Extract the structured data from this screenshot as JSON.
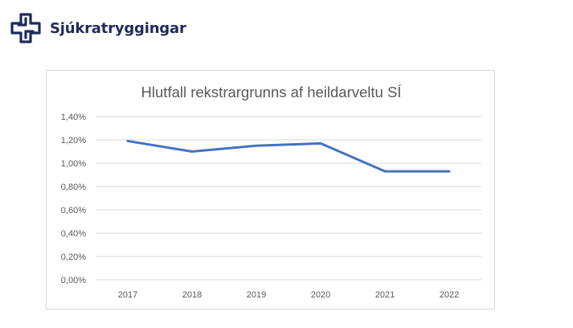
{
  "brand": {
    "name": "Sjúkratryggingar",
    "logo_icon": "cross-logo-icon",
    "color": "#1f2a5c"
  },
  "chart_data": {
    "type": "line",
    "title": "Hlutfall rekstrargrunns af heildarveltu SÍ",
    "categories": [
      "2017",
      "2018",
      "2019",
      "2020",
      "2021",
      "2022"
    ],
    "series": [
      {
        "values": [
          1.19,
          1.1,
          1.15,
          1.17,
          0.93,
          0.93
        ],
        "color": "#4472c4"
      }
    ],
    "ylim": [
      0,
      1.4
    ],
    "yticks": [
      0,
      0.2,
      0.4,
      0.6,
      0.8,
      1.0,
      1.2,
      1.4
    ],
    "ytick_labels": [
      "0,00%",
      "0,20%",
      "0,40%",
      "0,60%",
      "0,80%",
      "1,00%",
      "1,20%",
      "1,40%"
    ],
    "grid": true,
    "gridline_color": "#d9d9d9",
    "xlabel": "",
    "ylabel": ""
  }
}
